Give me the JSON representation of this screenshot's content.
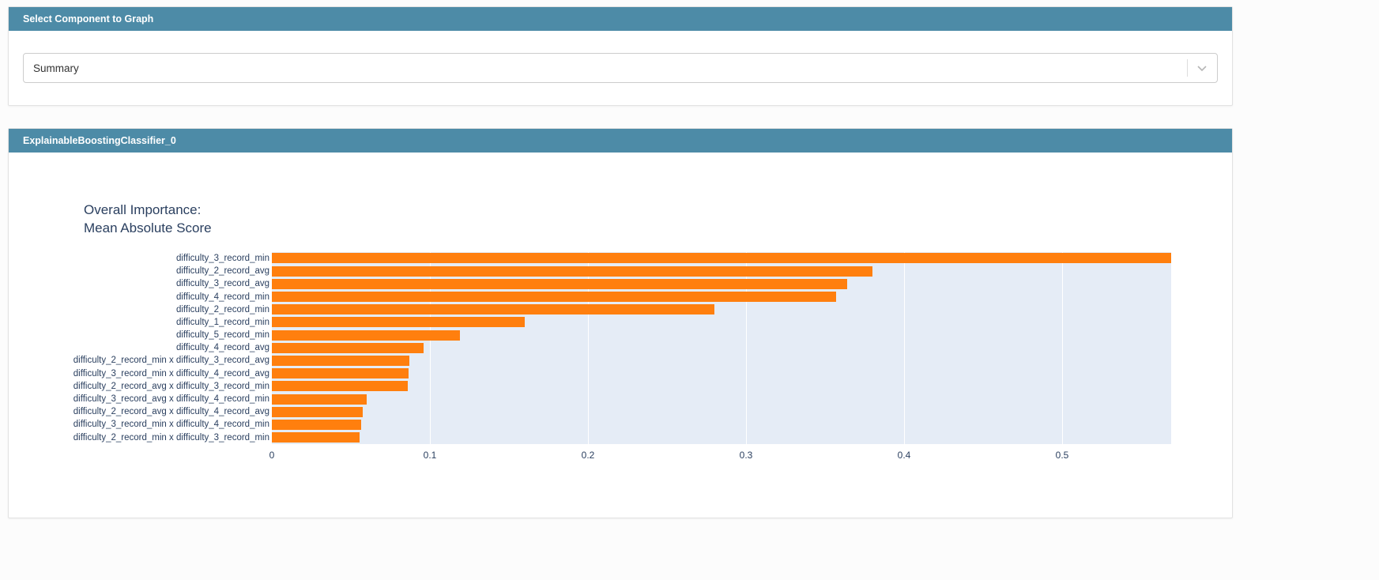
{
  "select_panel": {
    "title": "Select Component to Graph",
    "dropdown_value": "Summary"
  },
  "graph_panel": {
    "title": "ExplainableBoostingClassifier_0"
  },
  "colors": {
    "header_bg": "#4d8ba7",
    "bar": "#ff7f0e",
    "plot_bg": "#e5ecf6",
    "title_text": "#2a3f5f"
  },
  "chart_data": {
    "type": "bar",
    "orientation": "horizontal",
    "title": "Overall Importance:",
    "subtitle": "Mean Absolute Score",
    "categories": [
      "difficulty_3_record_min",
      "difficulty_2_record_avg",
      "difficulty_3_record_avg",
      "difficulty_4_record_min",
      "difficulty_2_record_min",
      "difficulty_1_record_min",
      "difficulty_5_record_min",
      "difficulty_4_record_avg",
      "difficulty_2_record_min x difficulty_3_record_avg",
      "difficulty_3_record_min x difficulty_4_record_avg",
      "difficulty_2_record_avg x difficulty_3_record_min",
      "difficulty_3_record_avg x difficulty_4_record_min",
      "difficulty_2_record_avg x difficulty_4_record_avg",
      "difficulty_3_record_min x difficulty_4_record_min",
      "difficulty_2_record_min x difficulty_3_record_min"
    ],
    "values": [
      0.569,
      0.38,
      0.364,
      0.357,
      0.28,
      0.16,
      0.119,
      0.096,
      0.087,
      0.0865,
      0.086,
      0.06,
      0.0575,
      0.0565,
      0.0555
    ],
    "xticks": [
      0,
      0.1,
      0.2,
      0.3,
      0.4,
      0.5
    ],
    "xlim": [
      0,
      0.569
    ],
    "xlabel": "",
    "ylabel": "",
    "grid": true,
    "legend": "none",
    "bar_color": "#ff7f0e"
  }
}
